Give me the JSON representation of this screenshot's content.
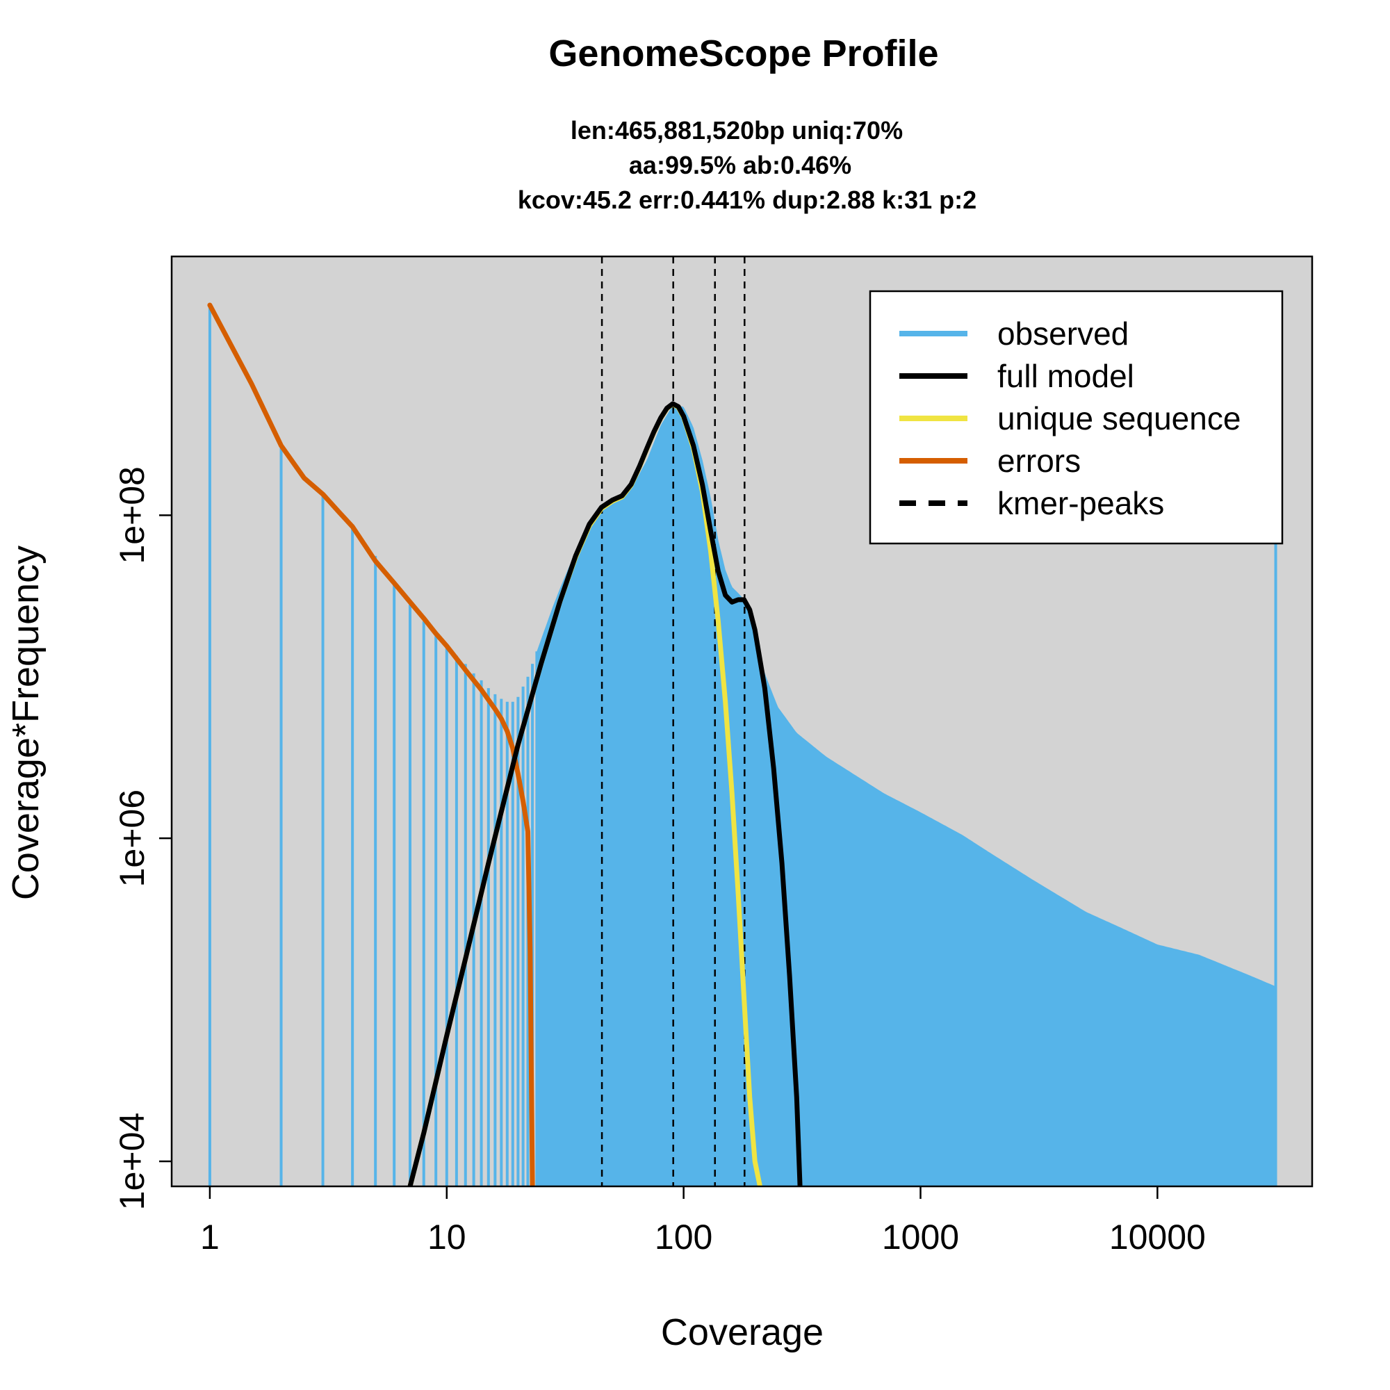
{
  "chart_data": {
    "type": "line",
    "title": "GenomeScope Profile",
    "subtitle_lines": [
      "len:465,881,520bp uniq:70%",
      "aa:99.5% ab:0.46%",
      "kcov:45.2 err:0.441%  dup:2.88  k:31 p:2"
    ],
    "xlabel": "Coverage",
    "ylabel": "Coverage*Frequency",
    "x_scale": "log",
    "y_scale": "log",
    "xlim": [
      0.69,
      45000
    ],
    "ylim": [
      7000,
      4000000000.0
    ],
    "x_ticks": [
      {
        "value": 1,
        "label": "1"
      },
      {
        "value": 10,
        "label": "10"
      },
      {
        "value": 100,
        "label": "100"
      },
      {
        "value": 1000,
        "label": "1000"
      },
      {
        "value": 10000,
        "label": "10000"
      }
    ],
    "y_ticks": [
      {
        "value": 10000,
        "label": "1e+04"
      },
      {
        "value": 1000000,
        "label": "1e+06"
      },
      {
        "value": 100000000,
        "label": "1e+08"
      }
    ],
    "kmer_peaks": [
      45.2,
      90.4,
      135.6,
      180.8
    ],
    "colors": {
      "background": "#d3d3d3",
      "observed": "#56b4e9",
      "full_model": "#000000",
      "unique_sequence": "#f0e442",
      "errors": "#d55e00"
    },
    "legend": {
      "position": "top-right",
      "entries": [
        {
          "label": "observed",
          "color": "#56b4e9",
          "style": "solid"
        },
        {
          "label": "full model",
          "color": "#000000",
          "style": "solid"
        },
        {
          "label": "unique sequence",
          "color": "#f0e442",
          "style": "solid"
        },
        {
          "label": "errors",
          "color": "#d55e00",
          "style": "solid"
        },
        {
          "label": "kmer-peaks",
          "color": "#000000",
          "style": "dashed"
        }
      ]
    },
    "series": [
      {
        "name": "observed",
        "x": [
          1,
          2,
          3,
          4,
          5,
          6,
          7,
          8,
          9,
          10,
          11,
          12,
          13,
          14,
          15,
          16,
          17,
          18,
          19,
          20,
          22,
          25,
          28,
          30,
          35,
          40,
          45,
          50,
          55,
          60,
          70,
          80,
          90,
          100,
          110,
          120,
          130,
          140,
          150,
          160,
          170,
          180,
          190,
          200,
          220,
          250,
          300,
          400,
          500,
          700,
          1000,
          1500,
          2000,
          3000,
          5000,
          7000,
          10000,
          15000,
          20000,
          25000,
          30000,
          32000
        ],
        "y": [
          2000000000.0,
          270000000.0,
          135000000.0,
          88000000.0,
          56000000.0,
          38000000.0,
          28000000.0,
          22000000.0,
          18000000.0,
          15500000.0,
          13500000.0,
          12000000.0,
          10500000.0,
          9500000.0,
          8500000.0,
          7800000.0,
          7300000.0,
          7000000.0,
          7000000.0,
          7500000.0,
          10000000.0,
          17000000.0,
          27000000.0,
          35000000.0,
          60000000.0,
          85000000.0,
          110000000.0,
          125000000.0,
          130000000.0,
          145000000.0,
          220000000.0,
          360000000.0,
          480000000.0,
          470000000.0,
          350000000.0,
          220000000.0,
          130000000.0,
          70000000.0,
          46000000.0,
          36000000.0,
          33000000.0,
          30000000.0,
          24000000.0,
          18000000.0,
          10500000.0,
          6500000.0,
          4500000.0,
          3200000.0,
          2600000.0,
          1900000.0,
          1450000.0,
          1050000.0,
          800000.0,
          550000.0,
          350000.0,
          280000.0,
          220000.0,
          190000.0,
          160000.0,
          140000.0,
          125000.0,
          120000.0
        ]
      },
      {
        "name": "full model",
        "x": [
          7,
          8,
          10,
          12,
          15,
          20,
          25,
          30,
          35,
          40,
          45,
          50,
          55,
          60,
          65,
          70,
          75,
          80,
          85,
          90,
          95,
          100,
          110,
          120,
          130,
          140,
          150,
          160,
          170,
          180,
          190,
          200,
          220,
          240,
          260,
          280,
          300,
          310
        ],
        "y": [
          7000,
          15000,
          60000.0,
          180000.0,
          700000.0,
          3800000.0,
          12000000.0,
          29000000.0,
          56000000.0,
          88000000.0,
          112000000.0,
          124000000.0,
          132000000.0,
          155000000.0,
          200000000.0,
          260000000.0,
          330000000.0,
          400000000.0,
          460000000.0,
          490000000.0,
          470000000.0,
          410000000.0,
          270000000.0,
          155000000.0,
          80000000.0,
          45000000.0,
          32000000.0,
          29000000.0,
          30000000.0,
          30000000.0,
          26000000.0,
          19500000.0,
          8500000.0,
          2700000.0,
          700000.0,
          140000.0,
          25000.0,
          7000
        ]
      },
      {
        "name": "unique sequence",
        "x": [
          7,
          8,
          10,
          12,
          15,
          20,
          25,
          30,
          35,
          40,
          45,
          50,
          55,
          60,
          65,
          70,
          75,
          80,
          85,
          90,
          95,
          100,
          110,
          120,
          130,
          140,
          150,
          160,
          170,
          180,
          190,
          200,
          210
        ],
        "y": [
          7000,
          15000,
          60000.0,
          180000.0,
          700000.0,
          3800000.0,
          12000000.0,
          29000000.0,
          55000000.0,
          86000000.0,
          110000000.0,
          122000000.0,
          130000000.0,
          153000000.0,
          198000000.0,
          258000000.0,
          328000000.0,
          398000000.0,
          458000000.0,
          488000000.0,
          465000000.0,
          405000000.0,
          260000000.0,
          140000000.0,
          60000000.0,
          22000000.0,
          7000000.0,
          1900000.0,
          450000.0,
          100000.0,
          25000.0,
          10000.0,
          7000
        ]
      },
      {
        "name": "errors",
        "x": [
          1,
          1.5,
          2,
          2.5,
          3,
          3.5,
          4,
          5,
          6,
          7,
          8,
          9,
          10,
          12,
          14,
          16,
          17,
          18,
          19,
          20,
          21,
          22,
          22.5,
          23
        ],
        "y": [
          2000000000.0,
          650000000.0,
          270000000.0,
          170000000.0,
          135000000.0,
          105000000.0,
          85000000.0,
          52000000.0,
          38000000.0,
          29000000.0,
          23000000.0,
          18500000.0,
          15500000.0,
          11000000.0,
          8300000.0,
          6300000.0,
          5500000.0,
          4600000.0,
          3600000.0,
          2500000.0,
          1700000.0,
          1100000.0,
          200000.0,
          7000
        ]
      }
    ]
  }
}
